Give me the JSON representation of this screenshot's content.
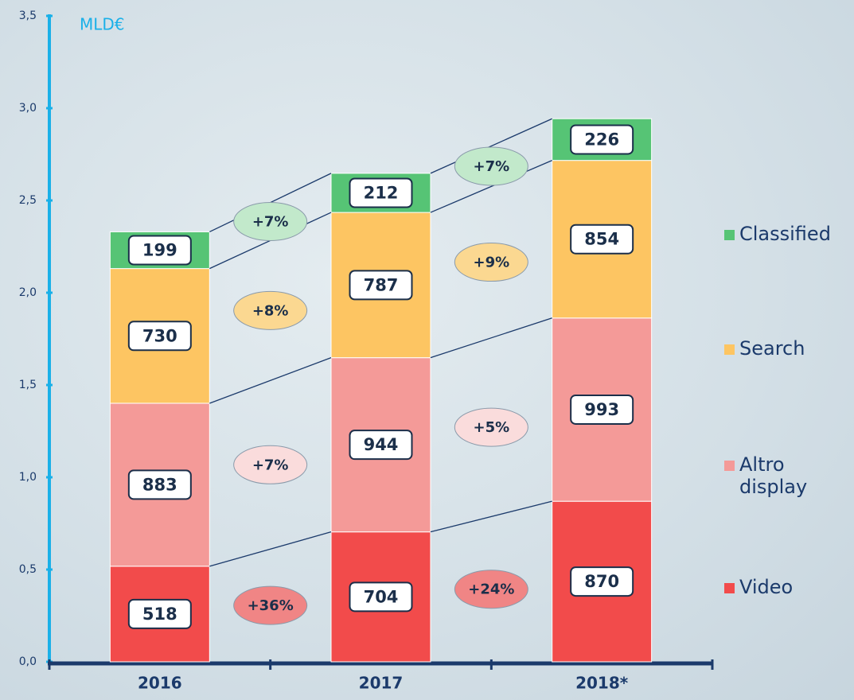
{
  "chart_data": {
    "type": "stacked_bar",
    "y_label": "MLD€",
    "categories": [
      "2016",
      "2017",
      "2018*"
    ],
    "series": [
      {
        "name": "Video",
        "color": "#f24b4b",
        "values": [
          0.518,
          0.704,
          0.87
        ],
        "value_labels": [
          "518",
          "704",
          "870"
        ],
        "growth_labels": [
          "+36%",
          "+24%"
        ],
        "growth_color": "#f08585"
      },
      {
        "name": "Altro display",
        "color": "#f49a98",
        "values": [
          0.883,
          0.944,
          0.993
        ],
        "value_labels": [
          "883",
          "944",
          "993"
        ],
        "growth_labels": [
          "+7%",
          "+5%"
        ],
        "growth_color": "#fadcdc"
      },
      {
        "name": "Search",
        "color": "#fdc562",
        "values": [
          0.73,
          0.787,
          0.854
        ],
        "value_labels": [
          "730",
          "787",
          "854"
        ],
        "growth_labels": [
          "+8%",
          "+9%"
        ],
        "growth_color": "#fbd891"
      },
      {
        "name": "Classified",
        "color": "#56c475",
        "values": [
          0.199,
          0.212,
          0.226
        ],
        "value_labels": [
          "199",
          "212",
          "226"
        ],
        "growth_labels": [
          "+7%",
          "+7%"
        ],
        "growth_color": "#c2e9cb"
      }
    ],
    "ylim": [
      0,
      3.5
    ],
    "yticks": [
      {
        "value": 0,
        "label": "0,0"
      },
      {
        "value": 0.5,
        "label": "0,5"
      },
      {
        "value": 1,
        "label": "1,0"
      },
      {
        "value": 1.5,
        "label": "1,5"
      },
      {
        "value": 2,
        "label": "2,0"
      },
      {
        "value": 2.5,
        "label": "2,5"
      },
      {
        "value": 3,
        "label": "3,0"
      },
      {
        "value": 3.5,
        "label": "3,5"
      }
    ]
  }
}
